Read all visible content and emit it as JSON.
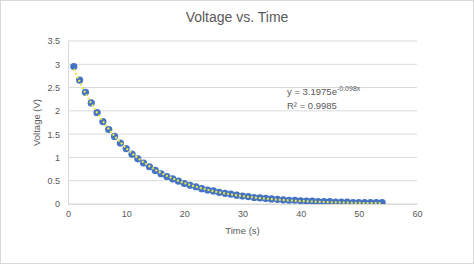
{
  "chart_data": {
    "type": "scatter",
    "title": "Voltage vs. Time",
    "x_label": "Time (s)",
    "y_label": "Voltage (V)",
    "annotations": [
      {
        "text": "y = 3.1975e",
        "sup": "-0.098x"
      },
      {
        "text": "R² = 0.9985"
      }
    ],
    "x": [
      1,
      2,
      3,
      4,
      5,
      6,
      7,
      8,
      9,
      10,
      11,
      12,
      13,
      14,
      15,
      16,
      17,
      18,
      19,
      20,
      21,
      22,
      23,
      24,
      25,
      26,
      27,
      28,
      29,
      30,
      31,
      32,
      33,
      34,
      35,
      36,
      37,
      38,
      39,
      40,
      41,
      42,
      43,
      44,
      45,
      46,
      47,
      48,
      49,
      50,
      51,
      52,
      53,
      54
    ],
    "series": [
      {
        "type": "scatter",
        "marker": "circle",
        "color": "#4472c4",
        "values": [
          2.95,
          2.66,
          2.4,
          2.17,
          1.96,
          1.77,
          1.6,
          1.45,
          1.31,
          1.19,
          1.07,
          0.97,
          0.88,
          0.8,
          0.72,
          0.65,
          0.59,
          0.54,
          0.49,
          0.44,
          0.4,
          0.37,
          0.33,
          0.3,
          0.28,
          0.25,
          0.23,
          0.21,
          0.19,
          0.17,
          0.16,
          0.14,
          0.13,
          0.12,
          0.11,
          0.1,
          0.09,
          0.08,
          0.08,
          0.07,
          0.06,
          0.06,
          0.05,
          0.05,
          0.05,
          0.04,
          0.04,
          0.04,
          0.03,
          0.03,
          0.03,
          0.03,
          0.03,
          0.03
        ]
      },
      {
        "type": "line",
        "line_style": "dotted",
        "color": "#e6e64c",
        "values": [
          2.899,
          2.628,
          2.383,
          2.161,
          1.959,
          1.776,
          1.61,
          1.46,
          1.324,
          1.2,
          1.088,
          0.987,
          0.895,
          0.811,
          0.735,
          0.667,
          0.605,
          0.548,
          0.497,
          0.451,
          0.409,
          0.37,
          0.336,
          0.305,
          0.276,
          0.25,
          0.227,
          0.206,
          0.187,
          0.169,
          0.153,
          0.139,
          0.126,
          0.114,
          0.104,
          0.094,
          0.085,
          0.077,
          0.07,
          0.063,
          0.058,
          0.052,
          0.047,
          0.043,
          0.039,
          0.035,
          0.032,
          0.029,
          0.026,
          0.024,
          0.021,
          0.019,
          0.018,
          0.016
        ]
      }
    ],
    "xlim": [
      0,
      60
    ],
    "xticks": [
      0,
      10,
      20,
      30,
      40,
      50,
      60
    ],
    "ylim": [
      0,
      3.5
    ],
    "yticks": [
      0,
      0.5,
      1,
      1.5,
      2,
      2.5,
      3,
      3.5
    ],
    "grid": true
  }
}
